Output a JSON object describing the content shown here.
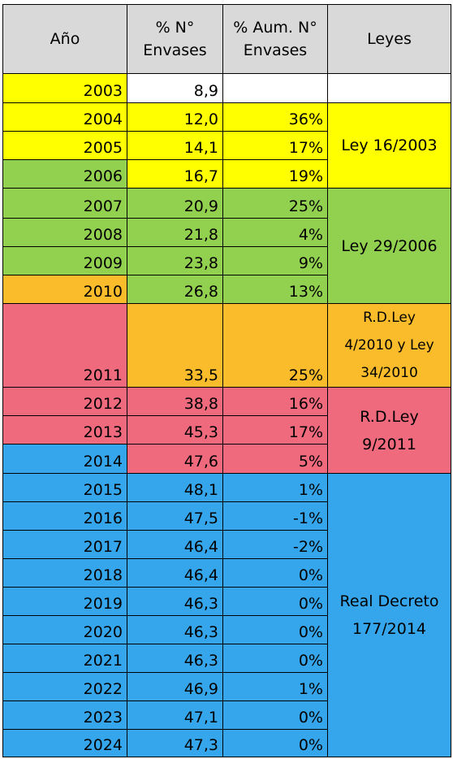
{
  "colors": {
    "header": "#d9d9d9",
    "yellow": "#ffff00",
    "green": "#92d050",
    "orange": "#fbbc2b",
    "pink": "#ee6a7c",
    "blue": "#36a6ec",
    "white": "#ffffff"
  },
  "headers": {
    "year": "Año",
    "pct": "% N°\nEnvases",
    "inc": "% Aum. N°\nEnvases",
    "laws": "Leyes"
  },
  "rows": [
    {
      "year": "2003",
      "pct": "8,9",
      "inc": "",
      "year_color": "yellow",
      "data_color": "white"
    },
    {
      "year": "2004",
      "pct": "12,0",
      "inc": "36%",
      "year_color": "yellow",
      "data_color": "yellow"
    },
    {
      "year": "2005",
      "pct": "14,1",
      "inc": "17%",
      "year_color": "yellow",
      "data_color": "yellow"
    },
    {
      "year": "2006",
      "pct": "16,7",
      "inc": "19%",
      "year_color": "green",
      "data_color": "yellow"
    },
    {
      "year": "2007",
      "pct": "20,9",
      "inc": "25%",
      "year_color": "green",
      "data_color": "green"
    },
    {
      "year": "2008",
      "pct": "21,8",
      "inc": "4%",
      "year_color": "green",
      "data_color": "green"
    },
    {
      "year": "2009",
      "pct": "23,8",
      "inc": "9%",
      "year_color": "green",
      "data_color": "green"
    },
    {
      "year": "2010",
      "pct": "26,8",
      "inc": "13%",
      "year_color": "orange",
      "data_color": "green"
    },
    {
      "year": "2011",
      "pct": "33,5",
      "inc": "25%",
      "year_color": "pink",
      "data_color": "orange"
    },
    {
      "year": "2012",
      "pct": "38,8",
      "inc": "16%",
      "year_color": "pink",
      "data_color": "pink"
    },
    {
      "year": "2013",
      "pct": "45,3",
      "inc": "17%",
      "year_color": "pink",
      "data_color": "pink"
    },
    {
      "year": "2014",
      "pct": "47,6",
      "inc": "5%",
      "year_color": "blue",
      "data_color": "pink"
    },
    {
      "year": "2015",
      "pct": "48,1",
      "inc": "1%",
      "year_color": "blue",
      "data_color": "blue"
    },
    {
      "year": "2016",
      "pct": "47,5",
      "inc": "-1%",
      "year_color": "blue",
      "data_color": "blue"
    },
    {
      "year": "2017",
      "pct": "46,4",
      "inc": "-2%",
      "year_color": "blue",
      "data_color": "blue"
    },
    {
      "year": "2018",
      "pct": "46,4",
      "inc": "0%",
      "year_color": "blue",
      "data_color": "blue"
    },
    {
      "year": "2019",
      "pct": "46,3",
      "inc": "0%",
      "year_color": "blue",
      "data_color": "blue"
    },
    {
      "year": "2020",
      "pct": "46,3",
      "inc": "0%",
      "year_color": "blue",
      "data_color": "blue"
    },
    {
      "year": "2021",
      "pct": "46,3",
      "inc": "0%",
      "year_color": "blue",
      "data_color": "blue"
    },
    {
      "year": "2022",
      "pct": "46,9",
      "inc": "1%",
      "year_color": "blue",
      "data_color": "blue"
    },
    {
      "year": "2023",
      "pct": "47,1",
      "inc": "0%",
      "year_color": "blue",
      "data_color": "blue"
    },
    {
      "year": "2024",
      "pct": "47,3",
      "inc": "0%",
      "year_color": "blue",
      "data_color": "blue"
    }
  ],
  "laws": [
    {
      "first_row": 0,
      "last_row": 0,
      "label": "",
      "color": "white"
    },
    {
      "first_row": 1,
      "last_row": 3,
      "label": "Ley 16/2003",
      "color": "yellow"
    },
    {
      "first_row": 4,
      "last_row": 7,
      "label": "Ley 29/2006",
      "color": "green"
    },
    {
      "first_row": 8,
      "last_row": 8,
      "label": "R.D.Ley\n4/2010 y Ley\n34/2010",
      "color": "orange"
    },
    {
      "first_row": 9,
      "last_row": 11,
      "label": "R.D.Ley\n9/2011",
      "color": "pink"
    },
    {
      "first_row": 12,
      "last_row": 21,
      "label": "Real Decreto\n177/2014",
      "color": "blue"
    }
  ]
}
